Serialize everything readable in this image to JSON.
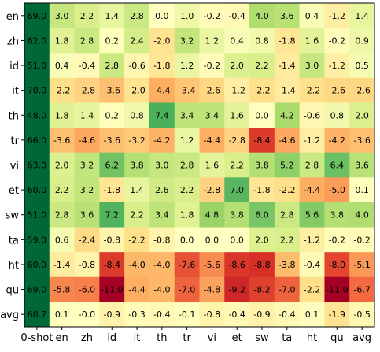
{
  "chart_data": {
    "type": "heatmap",
    "title": "",
    "xlabel": "",
    "ylabel": "",
    "x_categories": [
      "0-shot",
      "en",
      "zh",
      "id",
      "it",
      "th",
      "tr",
      "vi",
      "et",
      "sw",
      "ta",
      "ht",
      "qu",
      "avg"
    ],
    "y_categories": [
      "en",
      "zh",
      "id",
      "it",
      "th",
      "tr",
      "vi",
      "et",
      "sw",
      "ta",
      "ht",
      "qu",
      "avg"
    ],
    "values": [
      [
        "69.0",
        "3.0",
        "2.2",
        "1.4",
        "2.8",
        "0.0",
        "1.0",
        "-0.2",
        "-0.4",
        "4.0",
        "3.6",
        "0.4",
        "-1.2",
        "1.4"
      ],
      [
        "62.0",
        "1.8",
        "2.8",
        "0.2",
        "2.4",
        "-2.0",
        "3.2",
        "1.2",
        "0.4",
        "0.8",
        "-1.8",
        "1.6",
        "-0.2",
        "0.9"
      ],
      [
        "51.0",
        "0.4",
        "-0.4",
        "2.8",
        "-0.6",
        "-1.8",
        "1.2",
        "-0.2",
        "2.0",
        "2.2",
        "-1.4",
        "3.0",
        "-1.2",
        "0.5"
      ],
      [
        "70.0",
        "-2.2",
        "-2.8",
        "-3.6",
        "-2.0",
        "-4.4",
        "-3.4",
        "-2.6",
        "-1.2",
        "-2.2",
        "-1.4",
        "-2.2",
        "-2.6",
        "-2.6"
      ],
      [
        "48.0",
        "1.8",
        "1.4",
        "0.2",
        "0.8",
        "7.4",
        "3.4",
        "3.4",
        "1.6",
        "0.0",
        "4.2",
        "-0.6",
        "0.8",
        "2.0"
      ],
      [
        "66.0",
        "-3.6",
        "-4.6",
        "-3.6",
        "-3.2",
        "-4.2",
        "1.2",
        "-4.4",
        "-2.8",
        "-8.4",
        "-4.6",
        "-1.2",
        "-4.2",
        "-3.6"
      ],
      [
        "63.0",
        "2.0",
        "3.2",
        "6.2",
        "3.8",
        "3.0",
        "2.8",
        "1.6",
        "2.2",
        "3.8",
        "5.2",
        "2.8",
        "6.4",
        "3.6"
      ],
      [
        "60.0",
        "2.2",
        "3.2",
        "-1.8",
        "1.4",
        "2.6",
        "2.2",
        "-2.8",
        "7.0",
        "-1.8",
        "-2.2",
        "-4.4",
        "-5.0",
        "0.1"
      ],
      [
        "51.0",
        "2.8",
        "3.6",
        "7.2",
        "2.2",
        "3.4",
        "1.8",
        "4.8",
        "3.8",
        "6.0",
        "2.8",
        "5.6",
        "3.8",
        "4.0"
      ],
      [
        "59.0",
        "0.6",
        "-2.4",
        "-0.8",
        "-2.2",
        "-0.8",
        "0.0",
        "0.0",
        "0.0",
        "2.0",
        "2.2",
        "-1.2",
        "-0.2",
        "-0.2"
      ],
      [
        "60.0",
        "-1.4",
        "-0.8",
        "-8.4",
        "-4.0",
        "-4.0",
        "-7.6",
        "-5.6",
        "-8.6",
        "-8.8",
        "-3.8",
        "-0.4",
        "-8.0",
        "-5.1"
      ],
      [
        "69.0",
        "-5.8",
        "-6.0",
        "-11.0",
        "-4.4",
        "-4.0",
        "-7.0",
        "-4.8",
        "-9.2",
        "-8.2",
        "-7.0",
        "-2.2",
        "-11.0",
        "-6.7"
      ],
      [
        "60.7",
        "0.1",
        "-0.0",
        "-0.9",
        "-0.3",
        "-0.4",
        "-0.1",
        "-0.8",
        "-0.4",
        "-0.9",
        "-0.4",
        "0.1",
        "-1.9",
        "-0.5"
      ]
    ],
    "zero_shot_column_color": "#006837",
    "color_scale": "red-yellow-green",
    "grid": false,
    "legend": "none"
  }
}
